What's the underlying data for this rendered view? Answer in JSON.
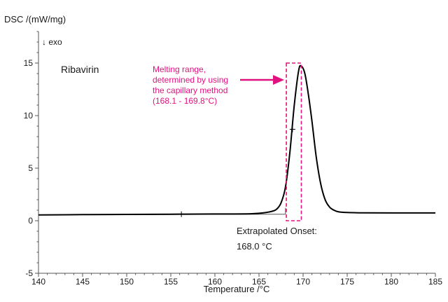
{
  "chart_data": {
    "type": "line",
    "ylabel": "DSC /(mW/mg)",
    "exo_label": "↓ exo",
    "xlabel": "Temperature /°C",
    "sample_label": "Ribavirin",
    "xlim": [
      140,
      185
    ],
    "ylim": [
      -5,
      18
    ],
    "x_ticks": [
      140,
      145,
      150,
      155,
      160,
      165,
      170,
      175,
      180,
      185
    ],
    "y_ticks": [
      -5,
      0,
      5,
      10,
      15
    ],
    "grid": false,
    "colors": {
      "curve": "#000000",
      "annotation": "#e0127f",
      "axis": "#555555"
    },
    "series": [
      {
        "x": [
          140,
          145,
          150,
          155,
          160,
          164,
          165.5,
          166.5,
          167,
          167.5,
          168,
          168.5,
          169,
          169.5,
          169.8,
          170.2,
          170.6,
          171,
          171.5,
          172,
          172.5,
          173,
          173.5,
          174,
          175,
          177,
          180,
          185
        ],
        "y": [
          0.55,
          0.58,
          0.6,
          0.62,
          0.64,
          0.66,
          0.75,
          0.9,
          1.1,
          1.7,
          3.2,
          6.5,
          11.0,
          14.3,
          14.7,
          14.0,
          12.0,
          9.5,
          6.0,
          3.5,
          2.0,
          1.3,
          1.0,
          0.85,
          0.78,
          0.75,
          0.74,
          0.74
        ]
      }
    ],
    "markers": [
      {
        "x": 156.2,
        "y": 0.62
      },
      {
        "x": 168.8,
        "y": 8.7
      }
    ],
    "onset_baseline": {
      "x": [
        140,
        168.0
      ],
      "y": [
        0.55,
        0.62
      ]
    },
    "capillary_range": {
      "x": [
        168.1,
        169.8
      ],
      "y": [
        0,
        15
      ]
    },
    "annotations": {
      "melting_lines": [
        "Melting range,",
        "determined by using",
        "the capillary method",
        "(168.1 - 169.8°C)"
      ],
      "onset_lines": [
        "Extrapolated Onset:",
        "168.0 °C"
      ]
    }
  }
}
